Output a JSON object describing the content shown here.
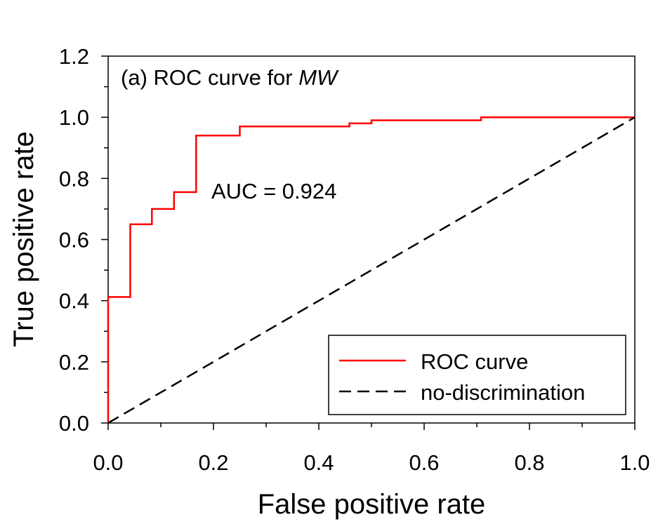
{
  "chart_data": {
    "type": "line",
    "title_prefix": "(a) ROC curve for ",
    "title_italic": "MW",
    "xlabel": "False positive rate",
    "ylabel": "True positive rate",
    "xlim": [
      0,
      1
    ],
    "ylim": [
      0,
      1.2
    ],
    "x_ticks": [
      "0.0",
      "0.2",
      "0.4",
      "0.6",
      "0.8",
      "1.0"
    ],
    "y_ticks": [
      "0.0",
      "0.2",
      "0.4",
      "0.6",
      "0.8",
      "1.0",
      "1.2"
    ],
    "annotation": "AUC = 0.924",
    "series": [
      {
        "name": "ROC curve",
        "color": "#ff0000",
        "style": "solid",
        "x": [
          0,
          0,
          0.042,
          0.042,
          0.083,
          0.083,
          0.125,
          0.125,
          0.167,
          0.167,
          0.25,
          0.25,
          0.458,
          0.458,
          0.5,
          0.5,
          0.708,
          0.708,
          1.0
        ],
        "y": [
          0,
          0.412,
          0.412,
          0.65,
          0.65,
          0.7,
          0.7,
          0.755,
          0.755,
          0.94,
          0.94,
          0.97,
          0.97,
          0.98,
          0.98,
          0.99,
          0.99,
          1.0,
          1.0
        ]
      },
      {
        "name": "no-discrimination",
        "color": "#000000",
        "style": "dashed",
        "x": [
          0,
          1
        ],
        "y": [
          0,
          1
        ]
      }
    ],
    "legend_position": "bottom-right"
  }
}
